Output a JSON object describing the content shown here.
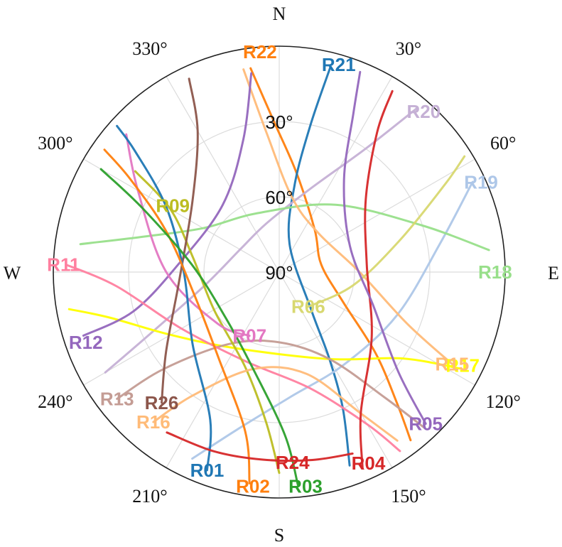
{
  "chart_data": {
    "type": "polar-skyplot",
    "title": "",
    "cardinal_labels": {
      "north": "N",
      "east": "E",
      "south": "S",
      "west": "W"
    },
    "azimuth_tick_labels": [
      {
        "az": 30,
        "text": "30°"
      },
      {
        "az": 60,
        "text": "60°"
      },
      {
        "az": 120,
        "text": "120°"
      },
      {
        "az": 150,
        "text": "150°"
      },
      {
        "az": 210,
        "text": "210°"
      },
      {
        "az": 240,
        "text": "240°"
      },
      {
        "az": 300,
        "text": "300°"
      },
      {
        "az": 330,
        "text": "330°"
      }
    ],
    "elevation_tick_labels": [
      {
        "el": 30,
        "text": "30°"
      },
      {
        "el": 60,
        "text": "60°"
      },
      {
        "el": 90,
        "text": "90°"
      }
    ],
    "elevation_grid": [
      30,
      60
    ],
    "azimuth_grid_step": 30,
    "series": [
      {
        "name": "R22",
        "color": "#ff7f0e",
        "label_point": {
          "az": 355,
          "el": 2
        },
        "points": [
          {
            "az": 352,
            "el": 8
          },
          {
            "az": 358,
            "el": 30
          },
          {
            "az": 10,
            "el": 50
          },
          {
            "az": 40,
            "el": 68
          },
          {
            "az": 80,
            "el": 73
          },
          {
            "az": 115,
            "el": 62
          },
          {
            "az": 130,
            "el": 40
          },
          {
            "az": 138,
            "el": 20
          },
          {
            "az": 142,
            "el": 5
          }
        ]
      },
      {
        "name": "R21",
        "color": "#1f77b4",
        "label_point": {
          "az": 16,
          "el": 4
        },
        "points": [
          {
            "az": 14,
            "el": 6
          },
          {
            "az": 12,
            "el": 30
          },
          {
            "az": 10,
            "el": 55
          },
          {
            "az": 20,
            "el": 78
          },
          {
            "az": 140,
            "el": 70
          },
          {
            "az": 150,
            "el": 50
          },
          {
            "az": 155,
            "el": 30
          },
          {
            "az": 160,
            "el": 8
          }
        ]
      },
      {
        "name": "R20",
        "color": "#c5b0d5",
        "label_point": {
          "az": 42,
          "el": 4
        },
        "points": [
          {
            "az": 40,
            "el": 5
          },
          {
            "az": 35,
            "el": 30
          },
          {
            "az": 20,
            "el": 55
          },
          {
            "az": 345,
            "el": 70
          },
          {
            "az": 300,
            "el": 72
          },
          {
            "az": 260,
            "el": 60
          },
          {
            "az": 245,
            "el": 35
          },
          {
            "az": 240,
            "el": 10
          }
        ]
      },
      {
        "name": "R19",
        "color": "#aec7e8",
        "label_point": {
          "az": 66,
          "el": 2
        },
        "points": [
          {
            "az": 65,
            "el": 5
          },
          {
            "az": 80,
            "el": 25
          },
          {
            "az": 110,
            "el": 40
          },
          {
            "az": 145,
            "el": 45
          },
          {
            "az": 175,
            "el": 40
          },
          {
            "az": 195,
            "el": 25
          },
          {
            "az": 205,
            "el": 8
          }
        ]
      },
      {
        "name": "R18",
        "color": "#98df8a",
        "label_point": {
          "az": 90,
          "el": 4
        },
        "points": [
          {
            "az": 84,
            "el": 6
          },
          {
            "az": 72,
            "el": 30
          },
          {
            "az": 40,
            "el": 55
          },
          {
            "az": 340,
            "el": 65
          },
          {
            "az": 300,
            "el": 55
          },
          {
            "az": 285,
            "el": 35
          },
          {
            "az": 278,
            "el": 10
          }
        ]
      },
      {
        "name": "R17",
        "color": "#ffff00",
        "label_point": {
          "az": 117,
          "el": 8
        },
        "points": [
          {
            "az": 118,
            "el": 8
          },
          {
            "az": 125,
            "el": 30
          },
          {
            "az": 150,
            "el": 50
          },
          {
            "az": 210,
            "el": 55
          },
          {
            "az": 240,
            "el": 40
          },
          {
            "az": 255,
            "el": 20
          },
          {
            "az": 260,
            "el": 5
          }
        ]
      },
      {
        "name": "R15",
        "color": "#ffbb78",
        "label_point": {
          "az": 118,
          "el": 12
        },
        "points": [
          {
            "az": 118,
            "el": 12
          },
          {
            "az": 112,
            "el": 35
          },
          {
            "az": 90,
            "el": 58
          },
          {
            "az": 45,
            "el": 68
          },
          {
            "az": 10,
            "el": 60
          },
          {
            "az": 355,
            "el": 35
          },
          {
            "az": 350,
            "el": 8
          }
        ]
      },
      {
        "name": "R13",
        "color": "#c49c94",
        "label_point": {
          "az": 232,
          "el": 8
        },
        "points": [
          {
            "az": 232,
            "el": 8
          },
          {
            "az": 230,
            "el": 30
          },
          {
            "az": 215,
            "el": 55
          },
          {
            "az": 180,
            "el": 62
          },
          {
            "az": 150,
            "el": 50
          },
          {
            "az": 140,
            "el": 25
          },
          {
            "az": 137,
            "el": 5
          }
        ]
      },
      {
        "name": "R12",
        "color": "#9467bd",
        "label_point": {
          "az": 250,
          "el": 8
        },
        "points": [
          {
            "az": 252,
            "el": 8
          },
          {
            "az": 255,
            "el": 30
          },
          {
            "az": 275,
            "el": 50
          },
          {
            "az": 320,
            "el": 55
          },
          {
            "az": 345,
            "el": 35
          },
          {
            "az": 352,
            "el": 10
          }
        ]
      },
      {
        "name": "R11",
        "color": "#ff7f9f",
        "label_point": {
          "az": 272,
          "el": 4
        },
        "points": [
          {
            "az": 272,
            "el": 5
          },
          {
            "az": 265,
            "el": 25
          },
          {
            "az": 240,
            "el": 45
          },
          {
            "az": 200,
            "el": 52
          },
          {
            "az": 165,
            "el": 42
          },
          {
            "az": 150,
            "el": 20
          },
          {
            "az": 146,
            "el": 4
          }
        ]
      },
      {
        "name": "R09",
        "color": "#bcbd22",
        "label_point": {
          "az": 302,
          "el": 40
        },
        "points": [
          {
            "az": 305,
            "el": 20
          },
          {
            "az": 300,
            "el": 40
          },
          {
            "az": 280,
            "el": 55
          },
          {
            "az": 240,
            "el": 60
          },
          {
            "az": 200,
            "el": 50
          },
          {
            "az": 185,
            "el": 30
          },
          {
            "az": 180,
            "el": 10
          }
        ]
      },
      {
        "name": "R07",
        "color": "#e377c2",
        "label_point": {
          "az": 205,
          "el": 62
        },
        "points": [
          {
            "az": 205,
            "el": 62
          },
          {
            "az": 230,
            "el": 58
          },
          {
            "az": 270,
            "el": 45
          },
          {
            "az": 300,
            "el": 25
          },
          {
            "az": 312,
            "el": 8
          }
        ]
      },
      {
        "name": "R06",
        "color": "#d8d870",
        "label_point": {
          "az": 140,
          "el": 72
        },
        "points": [
          {
            "az": 140,
            "el": 72
          },
          {
            "az": 100,
            "el": 60
          },
          {
            "az": 75,
            "el": 40
          },
          {
            "az": 62,
            "el": 15
          },
          {
            "az": 58,
            "el": 3
          }
        ]
      },
      {
        "name": "R26",
        "color": "#8c564b",
        "label_point": {
          "az": 222,
          "el": 20
        },
        "points": [
          {
            "az": 222,
            "el": 20
          },
          {
            "az": 235,
            "el": 35
          },
          {
            "az": 265,
            "el": 50
          },
          {
            "az": 310,
            "el": 45
          },
          {
            "az": 330,
            "el": 25
          },
          {
            "az": 335,
            "el": 5
          }
        ]
      },
      {
        "name": "R16",
        "color": "#ffbb78",
        "label_point": {
          "az": 220,
          "el": 12
        },
        "points": [
          {
            "az": 220,
            "el": 12
          },
          {
            "az": 215,
            "el": 30
          },
          {
            "az": 195,
            "el": 50
          },
          {
            "az": 165,
            "el": 48
          },
          {
            "az": 150,
            "el": 25
          },
          {
            "az": 145,
            "el": 8
          }
        ]
      },
      {
        "name": "R01",
        "color": "#1f77b4",
        "label_point": {
          "az": 200,
          "el": 6
        },
        "points": [
          {
            "az": 200,
            "el": 6
          },
          {
            "az": 205,
            "el": 25
          },
          {
            "az": 230,
            "el": 45
          },
          {
            "az": 270,
            "el": 52
          },
          {
            "az": 300,
            "el": 38
          },
          {
            "az": 310,
            "el": 15
          },
          {
            "az": 312,
            "el": 3
          }
        ]
      },
      {
        "name": "R02",
        "color": "#ff7f0e",
        "label_point": {
          "az": 187,
          "el": 4
        },
        "points": [
          {
            "az": 188,
            "el": 5
          },
          {
            "az": 192,
            "el": 25
          },
          {
            "az": 215,
            "el": 48
          },
          {
            "az": 255,
            "el": 55
          },
          {
            "az": 290,
            "el": 42
          },
          {
            "az": 302,
            "el": 20
          },
          {
            "az": 305,
            "el": 5
          }
        ]
      },
      {
        "name": "R03",
        "color": "#2ca02c",
        "label_point": {
          "az": 173,
          "el": 4
        },
        "points": [
          {
            "az": 175,
            "el": 5
          },
          {
            "az": 178,
            "el": 25
          },
          {
            "az": 195,
            "el": 50
          },
          {
            "az": 230,
            "el": 62
          },
          {
            "az": 275,
            "el": 55
          },
          {
            "az": 295,
            "el": 30
          },
          {
            "az": 300,
            "el": 8
          }
        ]
      },
      {
        "name": "R24",
        "color": "#d62728",
        "label_point": {
          "az": 176,
          "el": 14
        },
        "points": [
          {
            "az": 215,
            "el": 12
          },
          {
            "az": 200,
            "el": 14
          },
          {
            "az": 185,
            "el": 15
          },
          {
            "az": 170,
            "el": 14
          },
          {
            "az": 158,
            "el": 12
          }
        ]
      },
      {
        "name": "R04",
        "color": "#d62728",
        "label_point": {
          "az": 155,
          "el": 6
        },
        "points": [
          {
            "az": 157,
            "el": 5
          },
          {
            "az": 150,
            "el": 25
          },
          {
            "az": 125,
            "el": 45
          },
          {
            "az": 85,
            "el": 55
          },
          {
            "az": 50,
            "el": 45
          },
          {
            "az": 35,
            "el": 22
          },
          {
            "az": 32,
            "el": 5
          }
        ]
      },
      {
        "name": "R05",
        "color": "#9467bd",
        "label_point": {
          "az": 136,
          "el": 6
        },
        "points": [
          {
            "az": 136,
            "el": 6
          },
          {
            "az": 130,
            "el": 28
          },
          {
            "az": 110,
            "el": 50
          },
          {
            "az": 70,
            "el": 60
          },
          {
            "az": 35,
            "el": 45
          },
          {
            "az": 25,
            "el": 20
          },
          {
            "az": 22,
            "el": 4
          }
        ]
      }
    ]
  }
}
